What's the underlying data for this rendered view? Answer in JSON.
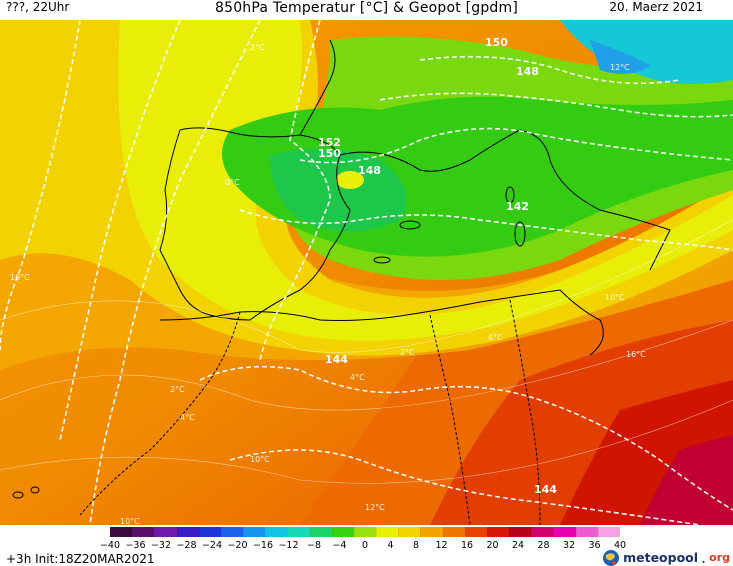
{
  "header": {
    "left": "???, 22Uhr",
    "title": "850hPa Temperatur [°C] & Geopot [gpdm]",
    "date": "20. Maerz 2021"
  },
  "footer": {
    "init": "+3h  Init:18Z20MAR2021",
    "brand_name": "meteopool",
    "brand_tld": "org"
  },
  "legend": {
    "ticks": [
      "−40",
      "−36",
      "−32",
      "−28",
      "−24",
      "−20",
      "−16",
      "−12",
      "−8",
      "−4",
      "0",
      "4",
      "8",
      "12",
      "16",
      "20",
      "24",
      "28",
      "32",
      "36",
      "40"
    ],
    "colors": [
      "#3a0a3d",
      "#5a0f6b",
      "#6f1aa8",
      "#3a1cc4",
      "#1c34d8",
      "#1b63e8",
      "#1696ee",
      "#14c2e6",
      "#17d8b8",
      "#1ed46a",
      "#38d414",
      "#98e00e",
      "#e6f007",
      "#f3d400",
      "#f5a300",
      "#f07400",
      "#e84300",
      "#d61800",
      "#b8001a",
      "#d1006d",
      "#e600b0",
      "#f05ad0",
      "#f7a0e4"
    ]
  },
  "map": {
    "geopot_labels": [
      "150",
      "148",
      "152",
      "150",
      "148",
      "142",
      "144",
      "144"
    ],
    "temp_labels": [
      "2°C",
      "10°C",
      "2°C",
      "0°C",
      "4°C",
      "2°C",
      "4°C",
      "4°C",
      "10°C",
      "10°C",
      "12°C",
      "10°C",
      "12°C",
      "16°C"
    ]
  }
}
